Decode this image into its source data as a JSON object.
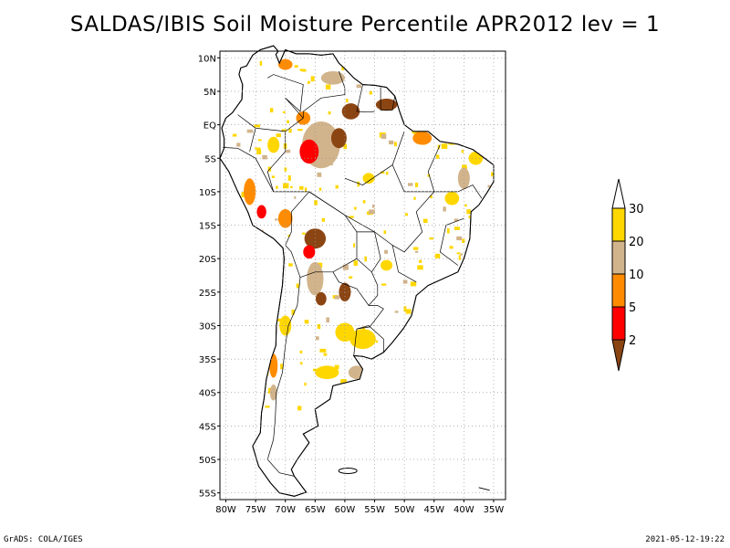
{
  "title": "SALDAS/IBIS Soil Moisture Percentile APR2012 lev = 1",
  "footer": {
    "left": "GrADS: COLA/IGES",
    "right": "2021-05-12-19:22"
  },
  "map": {
    "lon_range": [
      -81,
      -33
    ],
    "lat_range": [
      -56,
      11
    ],
    "lon_ticks": [
      {
        "value": -80,
        "label": "80W"
      },
      {
        "value": -75,
        "label": "75W"
      },
      {
        "value": -70,
        "label": "70W"
      },
      {
        "value": -65,
        "label": "65W"
      },
      {
        "value": -60,
        "label": "60W"
      },
      {
        "value": -55,
        "label": "55W"
      },
      {
        "value": -50,
        "label": "50W"
      },
      {
        "value": -45,
        "label": "45W"
      },
      {
        "value": -40,
        "label": "40W"
      },
      {
        "value": -35,
        "label": "35W"
      }
    ],
    "lat_ticks": [
      {
        "value": 10,
        "label": "10N"
      },
      {
        "value": 5,
        "label": "5N"
      },
      {
        "value": 0,
        "label": "EQ"
      },
      {
        "value": -5,
        "label": "5S"
      },
      {
        "value": -10,
        "label": "10S"
      },
      {
        "value": -15,
        "label": "15S"
      },
      {
        "value": -20,
        "label": "20S"
      },
      {
        "value": -25,
        "label": "25S"
      },
      {
        "value": -30,
        "label": "30S"
      },
      {
        "value": -35,
        "label": "35S"
      },
      {
        "value": -40,
        "label": "40S"
      },
      {
        "value": -45,
        "label": "45S"
      },
      {
        "value": -50,
        "label": "50S"
      },
      {
        "value": -55,
        "label": "55S"
      }
    ],
    "grid": true
  },
  "legend": {
    "labels": [
      "2",
      "5",
      "10",
      "20",
      "30"
    ],
    "colors": [
      "#8b4513",
      "#ff0000",
      "#ff8c00",
      "#d2b48c",
      "#ffd700",
      "#ffffff"
    ]
  },
  "anomaly_patches": [
    {
      "lon": -64,
      "lat": -3,
      "rx": 3.2,
      "ry": 3.5,
      "color": "#d2b48c"
    },
    {
      "lon": -66,
      "lat": -4,
      "rx": 1.6,
      "ry": 1.8,
      "color": "#ff0000"
    },
    {
      "lon": -67,
      "lat": 1,
      "rx": 1.2,
      "ry": 1.0,
      "color": "#ff8c00"
    },
    {
      "lon": -61,
      "lat": -2,
      "rx": 1.3,
      "ry": 1.5,
      "color": "#8b4513"
    },
    {
      "lon": -59,
      "lat": 2,
      "rx": 1.5,
      "ry": 1.2,
      "color": "#8b4513"
    },
    {
      "lon": -53,
      "lat": 3,
      "rx": 1.8,
      "ry": 0.9,
      "color": "#8b4513"
    },
    {
      "lon": -47,
      "lat": -2,
      "rx": 1.6,
      "ry": 1.0,
      "color": "#ff8c00"
    },
    {
      "lon": -62,
      "lat": 7,
      "rx": 2.0,
      "ry": 1.0,
      "color": "#d2b48c"
    },
    {
      "lon": -70,
      "lat": 9,
      "rx": 1.2,
      "ry": 0.8,
      "color": "#ff8c00"
    },
    {
      "lon": -40,
      "lat": -8,
      "rx": 1.0,
      "ry": 1.6,
      "color": "#d2b48c"
    },
    {
      "lon": -38,
      "lat": -5,
      "rx": 1.2,
      "ry": 1.0,
      "color": "#ffd700"
    },
    {
      "lon": -42,
      "lat": -11,
      "rx": 1.2,
      "ry": 1.0,
      "color": "#ffd700"
    },
    {
      "lon": -65,
      "lat": -17,
      "rx": 1.8,
      "ry": 1.5,
      "color": "#8b4513"
    },
    {
      "lon": -66,
      "lat": -19,
      "rx": 1.0,
      "ry": 1.0,
      "color": "#ff0000"
    },
    {
      "lon": -70,
      "lat": -14,
      "rx": 1.2,
      "ry": 1.4,
      "color": "#ff8c00"
    },
    {
      "lon": -76,
      "lat": -10,
      "rx": 1.0,
      "ry": 2.0,
      "color": "#ff8c00"
    },
    {
      "lon": -74,
      "lat": -13,
      "rx": 0.8,
      "ry": 1.0,
      "color": "#ff0000"
    },
    {
      "lon": -65,
      "lat": -23,
      "rx": 1.4,
      "ry": 2.5,
      "color": "#d2b48c"
    },
    {
      "lon": -64,
      "lat": -26,
      "rx": 0.9,
      "ry": 1.0,
      "color": "#8b4513"
    },
    {
      "lon": -60,
      "lat": -25,
      "rx": 1.0,
      "ry": 1.4,
      "color": "#8b4513"
    },
    {
      "lon": -57,
      "lat": -32,
      "rx": 2.2,
      "ry": 1.5,
      "color": "#ffd700"
    },
    {
      "lon": -60,
      "lat": -31,
      "rx": 1.6,
      "ry": 1.4,
      "color": "#ffd700"
    },
    {
      "lon": -63,
      "lat": -37,
      "rx": 2.0,
      "ry": 1.0,
      "color": "#ffd700"
    },
    {
      "lon": -58,
      "lat": -37,
      "rx": 1.4,
      "ry": 1.0,
      "color": "#d2b48c"
    },
    {
      "lon": -72,
      "lat": -36,
      "rx": 0.7,
      "ry": 1.8,
      "color": "#ff8c00"
    },
    {
      "lon": -72,
      "lat": -40,
      "rx": 0.6,
      "ry": 1.2,
      "color": "#d2b48c"
    },
    {
      "lon": -70,
      "lat": -30,
      "rx": 1.0,
      "ry": 1.5,
      "color": "#ffd700"
    },
    {
      "lon": -53,
      "lat": -21,
      "rx": 1.0,
      "ry": 0.8,
      "color": "#ffd700"
    },
    {
      "lon": -56,
      "lat": -8,
      "rx": 1.0,
      "ry": 0.8,
      "color": "#ffd700"
    },
    {
      "lon": -72,
      "lat": -3,
      "rx": 1.0,
      "ry": 1.2,
      "color": "#ffd700"
    }
  ]
}
